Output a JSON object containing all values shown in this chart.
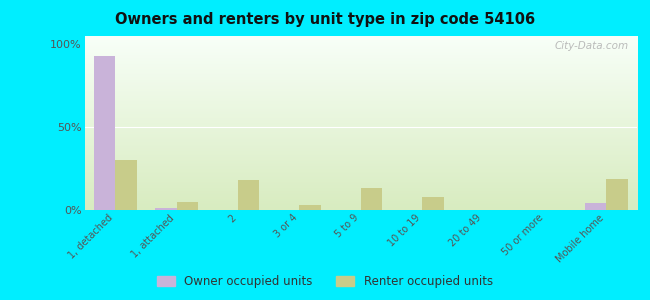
{
  "title": "Owners and renters by unit type in zip code 54106",
  "categories": [
    "1, detached",
    "1, attached",
    "2",
    "3 or 4",
    "5 to 9",
    "10 to 19",
    "20 to 49",
    "50 or more",
    "Mobile home"
  ],
  "owner_values": [
    93,
    1,
    0,
    0,
    0,
    0,
    0,
    0,
    4
  ],
  "renter_values": [
    30,
    5,
    18,
    3,
    13,
    8,
    0,
    0,
    19
  ],
  "owner_color": "#c9b3d9",
  "renter_color": "#c8cc8a",
  "background_color": "#00eeff",
  "plot_bg_gradient_top": "#f8fff8",
  "plot_bg_gradient_bottom": "#d8ecc0",
  "ylabel_ticks": [
    0,
    50,
    100
  ],
  "ylabel_labels": [
    "0%",
    "50%",
    "100%"
  ],
  "ylim": [
    0,
    105
  ],
  "bar_width": 0.35,
  "legend_owner": "Owner occupied units",
  "legend_renter": "Renter occupied units",
  "watermark": "City-Data.com"
}
